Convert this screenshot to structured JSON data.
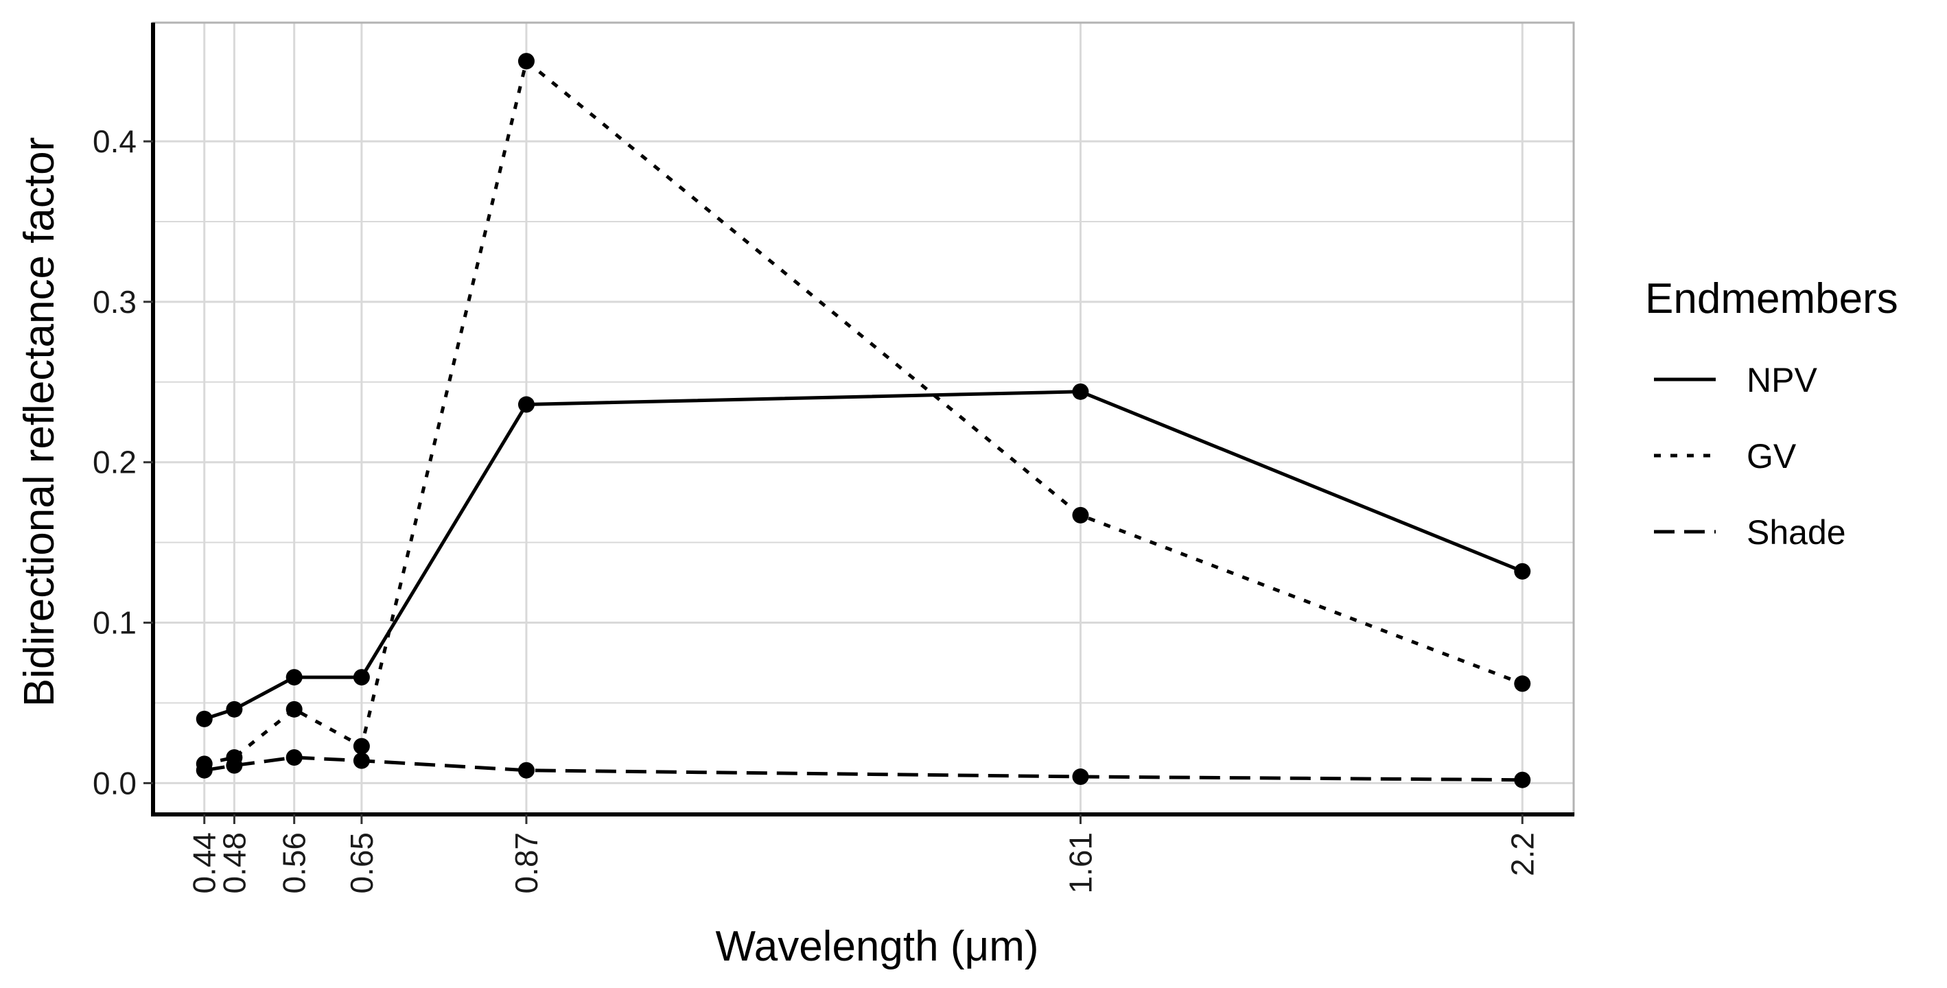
{
  "chart_data": {
    "type": "line",
    "x": [
      0.44,
      0.48,
      0.56,
      0.65,
      0.87,
      1.61,
      2.2
    ],
    "x_tick_labels": [
      "0.44",
      "0.48",
      "0.56",
      "0.65",
      "0.87",
      "1.61",
      "2.2"
    ],
    "y_ticks": [
      0.0,
      0.1,
      0.2,
      0.3,
      0.4
    ],
    "y_tick_labels": [
      "0.0",
      "0.1",
      "0.2",
      "0.3",
      "0.4"
    ],
    "xlim": [
      0.3715,
      2.2685
    ],
    "ylim": [
      -0.0195,
      0.474
    ],
    "xlabel": "Wavelength (μm)",
    "ylabel": "Bidirectional reflectance factor",
    "legend": {
      "title": "Endmembers",
      "position": "right"
    },
    "grid": true,
    "series": [
      {
        "name": "NPV",
        "linetype": "solid",
        "values": [
          0.04,
          0.046,
          0.066,
          0.066,
          0.236,
          0.244,
          0.132
        ]
      },
      {
        "name": "GV",
        "linetype": "dotted",
        "values": [
          0.012,
          0.016,
          0.046,
          0.023,
          0.45,
          0.167,
          0.062
        ]
      },
      {
        "name": "Shade",
        "linetype": "dashed",
        "values": [
          0.008,
          0.011,
          0.016,
          0.014,
          0.008,
          0.004,
          0.002
        ]
      }
    ],
    "colors": {
      "line": "#000000",
      "grid": "#d9d9d9",
      "panel_border": "#b3b3b3"
    }
  }
}
